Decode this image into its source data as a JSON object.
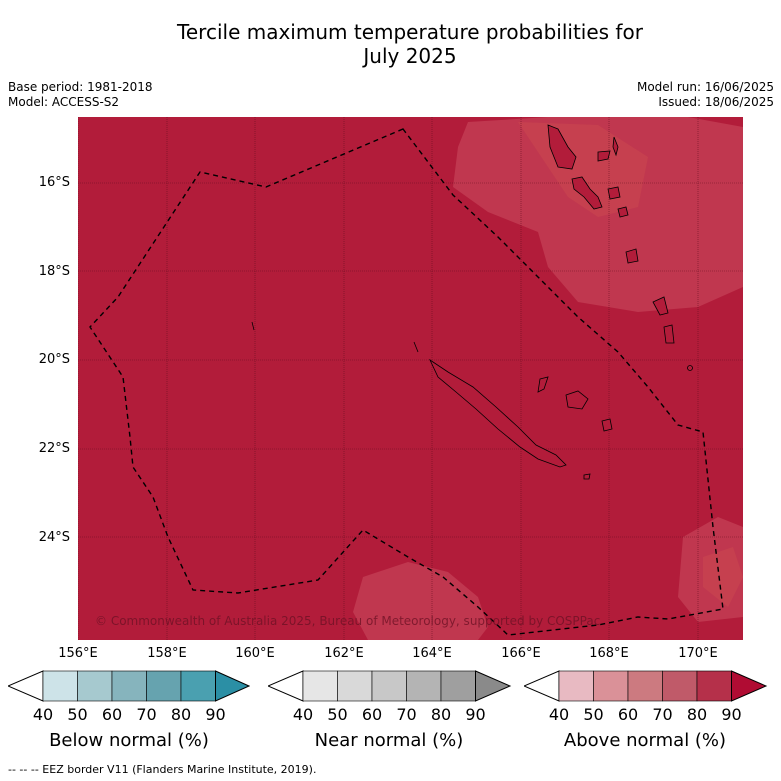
{
  "title_line1": "Tercile maximum temperature probabilities for",
  "title_line2": "July 2025",
  "base_period": "Base period: 1981-2018",
  "model": "Model: ACCESS-S2",
  "model_run": "Model run: 16/06/2025",
  "issued": "Issued: 18/06/2025",
  "copyright": "© Commonwealth of Australia 2025, Bureau of Meteorology, supported by COSPPac",
  "lat_labels": [
    "16°S",
    "18°S",
    "20°S",
    "22°S",
    "24°S"
  ],
  "lon_labels": [
    "156°E",
    "158°E",
    "160°E",
    "162°E",
    "164°E",
    "166°E",
    "168°E",
    "170°E"
  ],
  "colorbars": [
    {
      "label": "Below normal (%)",
      "ticks": [
        "40",
        "50",
        "60",
        "70",
        "80",
        "90"
      ],
      "colors": [
        "#ffffff",
        "#cde3e8",
        "#a6c9cf",
        "#86b4bd",
        "#66a3af",
        "#4aa0b0",
        "#2b8fa5"
      ]
    },
    {
      "label": "Near normal (%)",
      "ticks": [
        "40",
        "50",
        "60",
        "70",
        "80",
        "90"
      ],
      "colors": [
        "#ffffff",
        "#e6e6e6",
        "#d9d9d9",
        "#c8c8c8",
        "#b4b4b4",
        "#9f9f9f",
        "#8a8a8a"
      ]
    },
    {
      "label": "Above normal (%)",
      "ticks": [
        "40",
        "50",
        "60",
        "70",
        "80",
        "90"
      ],
      "colors": [
        "#ffffff",
        "#e8bac2",
        "#da9198",
        "#cc7a80",
        "#c05a69",
        "#b5304a",
        "#b00c33"
      ]
    }
  ],
  "map_colors": {
    "dominant": "#b21c3a",
    "lighter": "#c0374f",
    "lightest": "#cc5966"
  },
  "footer": "-- -- -- EEZ border V11 (Flanders Marine Institute, 2019)."
}
